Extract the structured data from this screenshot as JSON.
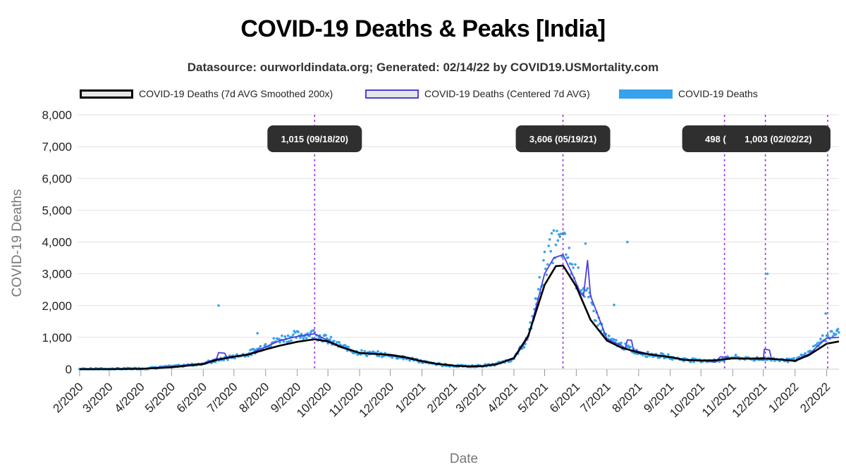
{
  "header": {
    "title": "COVID-19 Deaths & Peaks [India]",
    "subtitle": "Datasource: ourworldindata.org; Generated: 02/14/22 by COVID19.USMortality.com"
  },
  "legend": {
    "smoothed": "COVID-19 Deaths (7d AVG Smoothed 200x)",
    "centered": "COVID-19 Deaths (Centered 7d AVG)",
    "raw": "COVID-19 Deaths"
  },
  "colors": {
    "smoothed": "#000000",
    "centered": "#4b3fe0",
    "raw": "#36a2eb",
    "peak_line": "#9b30e8",
    "peak_box": "#2f2f2f",
    "grid": "#e2e2e2"
  },
  "chart_data": {
    "type": "line",
    "title": "COVID-19 Deaths & Peaks [India]",
    "xlabel": "Date",
    "ylabel": "COVID-19 Deaths",
    "ylim": [
      0,
      8000
    ],
    "yticks": [
      "0",
      "1,000",
      "2,000",
      "3,000",
      "4,000",
      "5,000",
      "6,000",
      "7,000",
      "8,000"
    ],
    "xlim": [
      "2020-01-30",
      "2022-02-13"
    ],
    "xticks": [
      {
        "label": "2/2020",
        "date": "2020-02-01"
      },
      {
        "label": "3/2020",
        "date": "2020-03-01"
      },
      {
        "label": "4/2020",
        "date": "2020-04-01"
      },
      {
        "label": "5/2020",
        "date": "2020-05-01"
      },
      {
        "label": "6/2020",
        "date": "2020-06-01"
      },
      {
        "label": "7/2020",
        "date": "2020-07-01"
      },
      {
        "label": "8/2020",
        "date": "2020-08-01"
      },
      {
        "label": "9/2020",
        "date": "2020-09-01"
      },
      {
        "label": "10/2020",
        "date": "2020-10-01"
      },
      {
        "label": "11/2020",
        "date": "2020-11-01"
      },
      {
        "label": "12/2020",
        "date": "2020-12-01"
      },
      {
        "label": "1/2021",
        "date": "2021-01-01"
      },
      {
        "label": "2/2021",
        "date": "2021-02-01"
      },
      {
        "label": "3/2021",
        "date": "2021-03-01"
      },
      {
        "label": "4/2021",
        "date": "2021-04-01"
      },
      {
        "label": "5/2021",
        "date": "2021-05-01"
      },
      {
        "label": "6/2021",
        "date": "2021-06-01"
      },
      {
        "label": "7/2021",
        "date": "2021-07-01"
      },
      {
        "label": "8/2021",
        "date": "2021-08-01"
      },
      {
        "label": "9/2021",
        "date": "2021-09-01"
      },
      {
        "label": "10/2021",
        "date": "2021-10-01"
      },
      {
        "label": "11/2021",
        "date": "2021-11-01"
      },
      {
        "label": "12/2021",
        "date": "2021-12-01"
      },
      {
        "label": "1/2022",
        "date": "2022-01-01"
      },
      {
        "label": "2/2022",
        "date": "2022-02-01"
      }
    ],
    "series": [
      {
        "name": "COVID-19 Deaths (7d AVG Smoothed 200x)",
        "style": "line",
        "points": [
          [
            "2020-02-01",
            0
          ],
          [
            "2020-03-01",
            0
          ],
          [
            "2020-04-01",
            10
          ],
          [
            "2020-05-01",
            60
          ],
          [
            "2020-06-01",
            160
          ],
          [
            "2020-06-15",
            300
          ],
          [
            "2020-07-01",
            390
          ],
          [
            "2020-07-15",
            460
          ],
          [
            "2020-08-01",
            620
          ],
          [
            "2020-08-15",
            740
          ],
          [
            "2020-09-01",
            860
          ],
          [
            "2020-09-18",
            940
          ],
          [
            "2020-10-01",
            870
          ],
          [
            "2020-10-15",
            680
          ],
          [
            "2020-11-01",
            510
          ],
          [
            "2020-11-15",
            480
          ],
          [
            "2020-12-01",
            450
          ],
          [
            "2020-12-15",
            380
          ],
          [
            "2021-01-01",
            250
          ],
          [
            "2021-01-15",
            170
          ],
          [
            "2021-02-01",
            110
          ],
          [
            "2021-02-15",
            85
          ],
          [
            "2021-03-01",
            95
          ],
          [
            "2021-03-15",
            150
          ],
          [
            "2021-04-01",
            350
          ],
          [
            "2021-04-15",
            1050
          ],
          [
            "2021-05-01",
            2650
          ],
          [
            "2021-05-12",
            3240
          ],
          [
            "2021-05-19",
            3260
          ],
          [
            "2021-06-01",
            2600
          ],
          [
            "2021-06-15",
            1550
          ],
          [
            "2021-07-01",
            900
          ],
          [
            "2021-07-15",
            680
          ],
          [
            "2021-08-01",
            520
          ],
          [
            "2021-08-15",
            450
          ],
          [
            "2021-09-01",
            380
          ],
          [
            "2021-09-15",
            290
          ],
          [
            "2021-10-01",
            270
          ],
          [
            "2021-10-15",
            280
          ],
          [
            "2021-11-01",
            340
          ],
          [
            "2021-11-15",
            330
          ],
          [
            "2021-12-01",
            340
          ],
          [
            "2021-12-15",
            310
          ],
          [
            "2022-01-01",
            260
          ],
          [
            "2022-01-15",
            450
          ],
          [
            "2022-02-01",
            800
          ],
          [
            "2022-02-13",
            870
          ]
        ]
      },
      {
        "name": "COVID-19 Deaths (Centered 7d AVG)",
        "style": "line",
        "points": [
          [
            "2020-02-01",
            0
          ],
          [
            "2020-03-01",
            0
          ],
          [
            "2020-04-01",
            15
          ],
          [
            "2020-05-01",
            80
          ],
          [
            "2020-06-01",
            180
          ],
          [
            "2020-06-14",
            330
          ],
          [
            "2020-06-16",
            520
          ],
          [
            "2020-06-22",
            500
          ],
          [
            "2020-06-24",
            380
          ],
          [
            "2020-07-01",
            400
          ],
          [
            "2020-07-15",
            470
          ],
          [
            "2020-08-01",
            700
          ],
          [
            "2020-08-15",
            900
          ],
          [
            "2020-09-01",
            1030
          ],
          [
            "2020-09-18",
            1110
          ],
          [
            "2020-10-01",
            900
          ],
          [
            "2020-10-15",
            700
          ],
          [
            "2020-11-01",
            520
          ],
          [
            "2020-11-15",
            480
          ],
          [
            "2020-12-01",
            430
          ],
          [
            "2020-12-15",
            360
          ],
          [
            "2021-01-01",
            240
          ],
          [
            "2021-01-15",
            160
          ],
          [
            "2021-02-01",
            110
          ],
          [
            "2021-02-15",
            90
          ],
          [
            "2021-03-01",
            100
          ],
          [
            "2021-03-15",
            160
          ],
          [
            "2021-04-01",
            330
          ],
          [
            "2021-04-15",
            1000
          ],
          [
            "2021-05-01",
            3000
          ],
          [
            "2021-05-10",
            3500
          ],
          [
            "2021-05-19",
            3600
          ],
          [
            "2021-05-28",
            3000
          ],
          [
            "2021-06-05",
            2400
          ],
          [
            "2021-06-08",
            2300
          ],
          [
            "2021-06-12",
            3420
          ],
          [
            "2021-06-15",
            2300
          ],
          [
            "2021-07-01",
            950
          ],
          [
            "2021-07-15",
            750
          ],
          [
            "2021-07-19",
            650
          ],
          [
            "2021-07-21",
            920
          ],
          [
            "2021-07-25",
            910
          ],
          [
            "2021-07-27",
            600
          ],
          [
            "2021-08-15",
            440
          ],
          [
            "2021-09-01",
            380
          ],
          [
            "2021-09-15",
            300
          ],
          [
            "2021-10-01",
            280
          ],
          [
            "2021-10-15",
            220
          ],
          [
            "2021-10-20",
            390
          ],
          [
            "2021-11-01",
            350
          ],
          [
            "2021-11-15",
            330
          ],
          [
            "2021-12-01",
            300
          ],
          [
            "2021-12-02",
            630
          ],
          [
            "2021-12-07",
            600
          ],
          [
            "2021-12-09",
            320
          ],
          [
            "2021-12-20",
            300
          ],
          [
            "2022-01-01",
            280
          ],
          [
            "2022-01-15",
            480
          ],
          [
            "2022-02-01",
            980
          ],
          [
            "2022-02-13",
            1000
          ]
        ]
      },
      {
        "name": "COVID-19 Deaths",
        "style": "scatter",
        "trend": [
          [
            "2020-02-01",
            0
          ],
          [
            "2020-03-01",
            0
          ],
          [
            "2020-04-01",
            15
          ],
          [
            "2020-05-01",
            80
          ],
          [
            "2020-06-01",
            180
          ],
          [
            "2020-07-01",
            400
          ],
          [
            "2020-07-15",
            480
          ],
          [
            "2020-08-01",
            750
          ],
          [
            "2020-08-15",
            950
          ],
          [
            "2020-09-01",
            1060
          ],
          [
            "2020-09-18",
            1130
          ],
          [
            "2020-10-01",
            920
          ],
          [
            "2020-10-15",
            700
          ],
          [
            "2020-11-01",
            520
          ],
          [
            "2020-11-15",
            480
          ],
          [
            "2020-12-01",
            430
          ],
          [
            "2020-12-15",
            360
          ],
          [
            "2021-01-01",
            240
          ],
          [
            "2021-01-15",
            160
          ],
          [
            "2021-02-01",
            110
          ],
          [
            "2021-02-15",
            90
          ],
          [
            "2021-03-01",
            100
          ],
          [
            "2021-03-15",
            160
          ],
          [
            "2021-04-01",
            330
          ],
          [
            "2021-04-15",
            1000
          ],
          [
            "2021-05-01",
            3300
          ],
          [
            "2021-05-10",
            3900
          ],
          [
            "2021-05-19",
            3950
          ],
          [
            "2021-05-28",
            3200
          ],
          [
            "2021-06-10",
            2400
          ],
          [
            "2021-06-20",
            1700
          ],
          [
            "2021-07-01",
            950
          ],
          [
            "2021-07-15",
            750
          ],
          [
            "2021-08-01",
            520
          ],
          [
            "2021-08-15",
            450
          ],
          [
            "2021-09-01",
            380
          ],
          [
            "2021-09-15",
            300
          ],
          [
            "2021-10-01",
            280
          ],
          [
            "2021-10-15",
            250
          ],
          [
            "2021-11-01",
            380
          ],
          [
            "2021-11-15",
            330
          ],
          [
            "2021-12-01",
            320
          ],
          [
            "2021-12-15",
            310
          ],
          [
            "2022-01-01",
            280
          ],
          [
            "2022-01-15",
            520
          ],
          [
            "2022-02-01",
            1050
          ],
          [
            "2022-02-13",
            1150
          ]
        ],
        "outliers": [
          [
            "2020-06-16",
            2000
          ],
          [
            "2021-06-10",
            3950
          ],
          [
            "2021-07-21",
            3998
          ],
          [
            "2021-07-08",
            2020
          ],
          [
            "2021-12-05",
            3000
          ],
          [
            "2022-01-31",
            1750
          ],
          [
            "2020-07-24",
            1130
          ],
          [
            "2022-02-11",
            1200
          ]
        ]
      }
    ],
    "peaks": [
      {
        "date": "2020-09-18",
        "label": "1,015 (09/18/20)"
      },
      {
        "date": "2021-05-19",
        "label": "3,606 (05/19/21)"
      },
      {
        "date": "2021-10-24",
        "label": "498 (10/6"
      },
      {
        "date": "2021-12-03",
        "label": "6"
      },
      {
        "date": "2022-02-02",
        "label": "1,003 (02/02/22)"
      }
    ]
  }
}
